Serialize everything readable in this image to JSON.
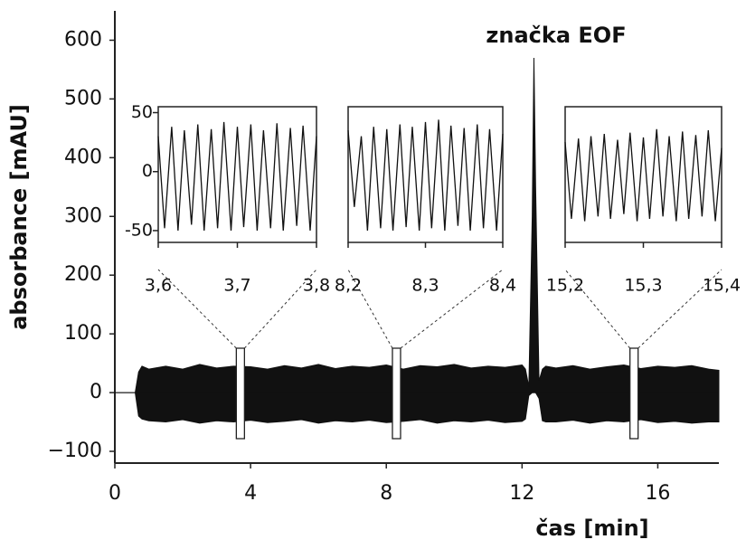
{
  "chart_data": [
    {
      "type": "area",
      "title": "značka EOF",
      "xlabel": "čas [min]",
      "ylabel": "absorbance [mAU]",
      "xlim": [
        0,
        17.8
      ],
      "ylim": [
        -120,
        650
      ],
      "xticks": [
        0,
        4,
        8,
        12,
        16
      ],
      "yticks": [
        {
          "value": -100,
          "label": "−100"
        },
        0,
        100,
        200,
        300,
        400,
        500,
        600
      ],
      "x": [
        0,
        0.6,
        0.7,
        0.8,
        1,
        1.5,
        2,
        2.5,
        3,
        3.5,
        4,
        4.5,
        5,
        5.5,
        6,
        6.5,
        7,
        7.5,
        8,
        8.5,
        9,
        9.5,
        10,
        10.5,
        11,
        11.5,
        12,
        12.1,
        12.2,
        12.3,
        12.35,
        12.4,
        12.5,
        12.6,
        12.7,
        13,
        13.5,
        14,
        14.5,
        15,
        15.5,
        16,
        16.5,
        17,
        17.5,
        17.8
      ],
      "series": [
        {
          "color": "#111111",
          "values": [
            0,
            0,
            35,
            45,
            40,
            45,
            40,
            48,
            42,
            45,
            44,
            40,
            46,
            42,
            48,
            41,
            45,
            43,
            47,
            40,
            46,
            44,
            48,
            42,
            45,
            43,
            47,
            40,
            10,
            300,
            570,
            350,
            20,
            40,
            45,
            42,
            46,
            40,
            44,
            47,
            41,
            45,
            43,
            46,
            40,
            38
          ]
        },
        {
          "color": "#111111",
          "values": [
            0,
            0,
            -40,
            -45,
            -48,
            -50,
            -46,
            -52,
            -48,
            -50,
            -47,
            -51,
            -49,
            -46,
            -52,
            -48,
            -50,
            -47,
            -51,
            -49,
            -46,
            -52,
            -48,
            -50,
            -47,
            -51,
            -49,
            -45,
            -5,
            0,
            0,
            0,
            -10,
            -48,
            -50,
            -50,
            -47,
            -52,
            -48,
            -50,
            -46,
            -51,
            -49,
            -52,
            -50,
            -50
          ]
        }
      ]
    },
    {
      "type": "line",
      "xlim": [
        3.6,
        3.8
      ],
      "ylim": [
        -60,
        55
      ],
      "xticks": [
        {
          "value": 3.6,
          "label": "3,6"
        },
        {
          "value": 3.7,
          "label": "3,7"
        },
        {
          "value": 3.8,
          "label": "3,8"
        }
      ],
      "yticks": [
        -50,
        0,
        50
      ],
      "x": [
        3.6,
        3.608,
        3.617,
        3.625,
        3.633,
        3.642,
        3.65,
        3.658,
        3.667,
        3.675,
        3.683,
        3.692,
        3.7,
        3.708,
        3.717,
        3.725,
        3.733,
        3.742,
        3.75,
        3.758,
        3.767,
        3.775,
        3.783,
        3.792,
        3.8
      ],
      "series": [
        {
          "color": "#111111",
          "values": [
            30,
            -48,
            38,
            -50,
            35,
            -45,
            40,
            -50,
            36,
            -48,
            42,
            -50,
            38,
            -47,
            40,
            -50,
            35,
            -48,
            41,
            -50,
            37,
            -46,
            39,
            -50,
            30
          ]
        }
      ]
    },
    {
      "type": "line",
      "xlim": [
        8.2,
        8.4
      ],
      "ylim": [
        -60,
        55
      ],
      "xticks": [
        {
          "value": 8.2,
          "label": "8,2"
        },
        {
          "value": 8.3,
          "label": "8,3"
        },
        {
          "value": 8.4,
          "label": "8,4"
        }
      ],
      "x": [
        8.2,
        8.208,
        8.217,
        8.225,
        8.233,
        8.242,
        8.25,
        8.258,
        8.267,
        8.275,
        8.283,
        8.292,
        8.3,
        8.308,
        8.317,
        8.325,
        8.333,
        8.342,
        8.35,
        8.358,
        8.367,
        8.375,
        8.383,
        8.392,
        8.4
      ],
      "series": [
        {
          "color": "#111111",
          "values": [
            35,
            -30,
            30,
            -50,
            38,
            -48,
            36,
            -50,
            40,
            -47,
            38,
            -50,
            42,
            -48,
            44,
            -50,
            39,
            -46,
            37,
            -50,
            40,
            -48,
            36,
            -50,
            32
          ]
        }
      ]
    },
    {
      "type": "line",
      "xlim": [
        15.2,
        15.4
      ],
      "ylim": [
        -60,
        55
      ],
      "xticks": [
        {
          "value": 15.2,
          "label": "15,2"
        },
        {
          "value": 15.3,
          "label": "15,3"
        },
        {
          "value": 15.4,
          "label": "15,4"
        }
      ],
      "x": [
        15.2,
        15.208,
        15.217,
        15.225,
        15.233,
        15.242,
        15.25,
        15.258,
        15.267,
        15.275,
        15.283,
        15.292,
        15.3,
        15.308,
        15.317,
        15.325,
        15.333,
        15.342,
        15.35,
        15.358,
        15.367,
        15.375,
        15.383,
        15.392,
        15.4
      ],
      "series": [
        {
          "color": "#111111",
          "values": [
            25,
            -40,
            28,
            -42,
            30,
            -38,
            32,
            -40,
            27,
            -36,
            33,
            -42,
            29,
            -40,
            36,
            -38,
            30,
            -42,
            34,
            -40,
            31,
            -38,
            35,
            -42,
            20
          ]
        }
      ]
    }
  ]
}
